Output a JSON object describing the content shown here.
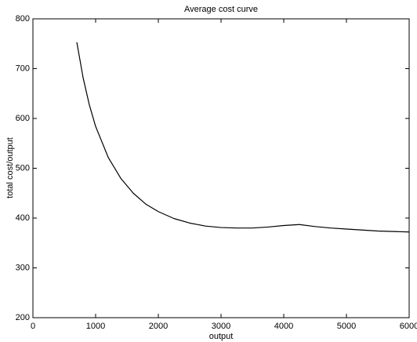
{
  "chart_data": {
    "type": "line",
    "title": "Average cost curve",
    "xlabel": "output",
    "ylabel": "total cost/output",
    "x": [
      700,
      800,
      900,
      1000,
      1200,
      1400,
      1600,
      1800,
      2000,
      2250,
      2500,
      2750,
      3000,
      3250,
      3500,
      3750,
      4000,
      4250,
      4500,
      4750,
      5000,
      5250,
      5500,
      5750,
      6000
    ],
    "values": [
      753,
      682,
      627,
      584,
      522,
      480,
      450,
      428,
      413,
      399,
      390,
      384,
      381,
      380,
      380,
      382,
      385,
      387,
      383,
      380,
      378,
      376,
      374,
      373,
      372
    ],
    "color": "#000000",
    "xlim": [
      0,
      6000
    ],
    "xticks": [
      0,
      1000,
      2000,
      3000,
      4000,
      5000,
      6000
    ],
    "ylim": [
      200,
      800
    ],
    "yticks": [
      200,
      300,
      400,
      500,
      600,
      700,
      800
    ],
    "grid": false
  }
}
